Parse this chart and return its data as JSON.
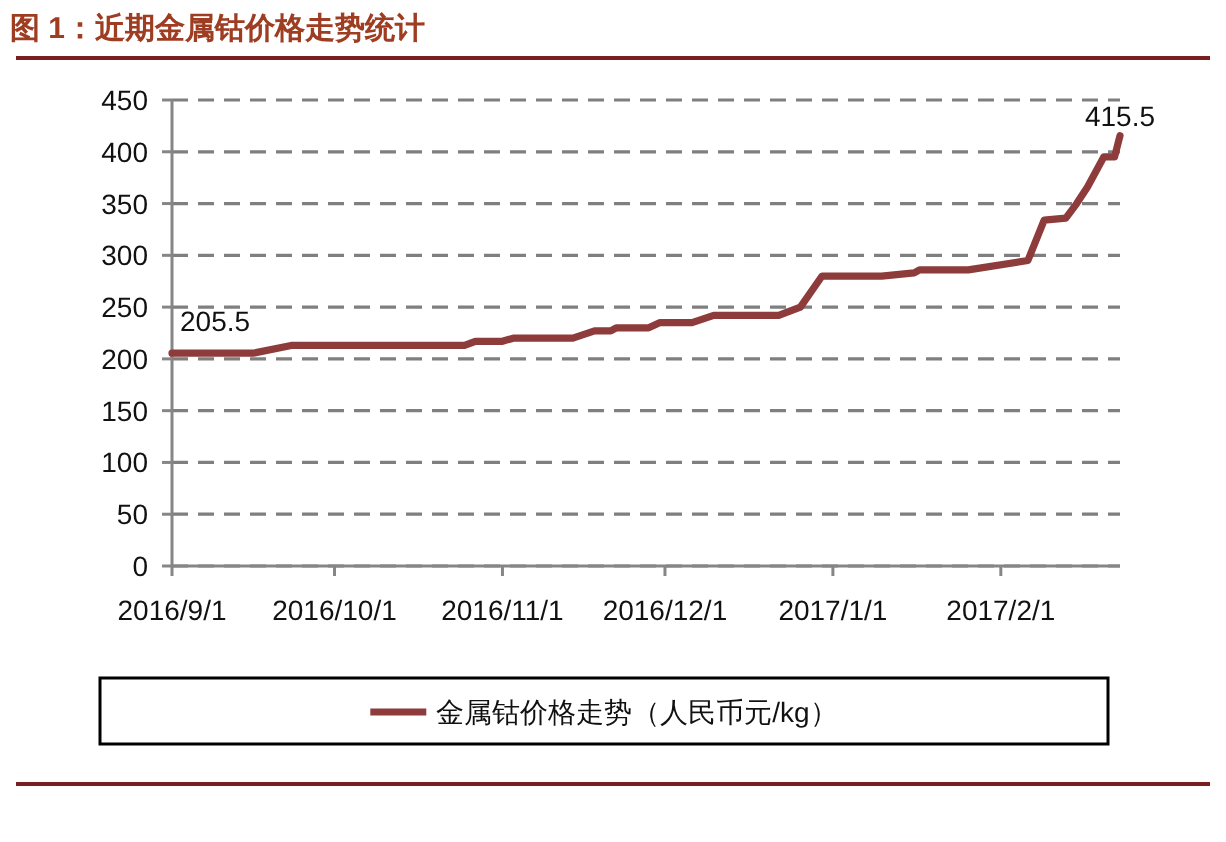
{
  "chart_data": {
    "type": "line",
    "title": "图 1：近期金属钴价格走势统计",
    "x": [
      "2016-09-01",
      "2016-09-16",
      "2016-09-23",
      "2016-10-25",
      "2016-10-27",
      "2016-11-01",
      "2016-11-03",
      "2016-11-14",
      "2016-11-18",
      "2016-11-21",
      "2016-11-22",
      "2016-11-28",
      "2016-11-30",
      "2016-12-06",
      "2016-12-10",
      "2016-12-22",
      "2016-12-26",
      "2016-12-30",
      "2017-01-10",
      "2017-01-16",
      "2017-01-17",
      "2017-01-26",
      "2017-02-06",
      "2017-02-09",
      "2017-02-13",
      "2017-02-15",
      "2017-02-17",
      "2017-02-20",
      "2017-02-22",
      "2017-02-23"
    ],
    "series": [
      {
        "name": "金属钴价格走势（人民币元/kg）",
        "color": "#8e3b3b",
        "values": [
          205.5,
          205.5,
          213,
          213,
          217,
          217,
          220,
          220,
          227,
          227,
          230,
          230,
          235,
          235,
          242,
          242,
          250,
          280,
          280,
          283,
          286,
          286,
          295,
          334,
          336,
          350,
          366,
          395,
          395,
          415.5
        ],
        "value_labels": [
          "205.5",
          null,
          null,
          null,
          null,
          null,
          null,
          null,
          null,
          null,
          null,
          null,
          null,
          null,
          null,
          null,
          null,
          null,
          null,
          null,
          null,
          null,
          null,
          null,
          null,
          null,
          null,
          null,
          null,
          "415.5"
        ]
      }
    ],
    "xlim": [
      "2016-09-01",
      "2017-02-23"
    ],
    "xticks": [
      {
        "value": "2016-09-01",
        "label": "2016/9/1"
      },
      {
        "value": "2016-10-01",
        "label": "2016/10/1"
      },
      {
        "value": "2016-11-01",
        "label": "2016/11/1"
      },
      {
        "value": "2016-12-01",
        "label": "2016/12/1"
      },
      {
        "value": "2017-01-01",
        "label": "2017/1/1"
      },
      {
        "value": "2017-02-01",
        "label": "2017/2/1"
      }
    ],
    "ylim": [
      0,
      450
    ],
    "yticks": [
      0,
      50,
      100,
      150,
      200,
      250,
      300,
      350,
      400,
      450
    ],
    "grid": "y",
    "legend": "bottom"
  }
}
